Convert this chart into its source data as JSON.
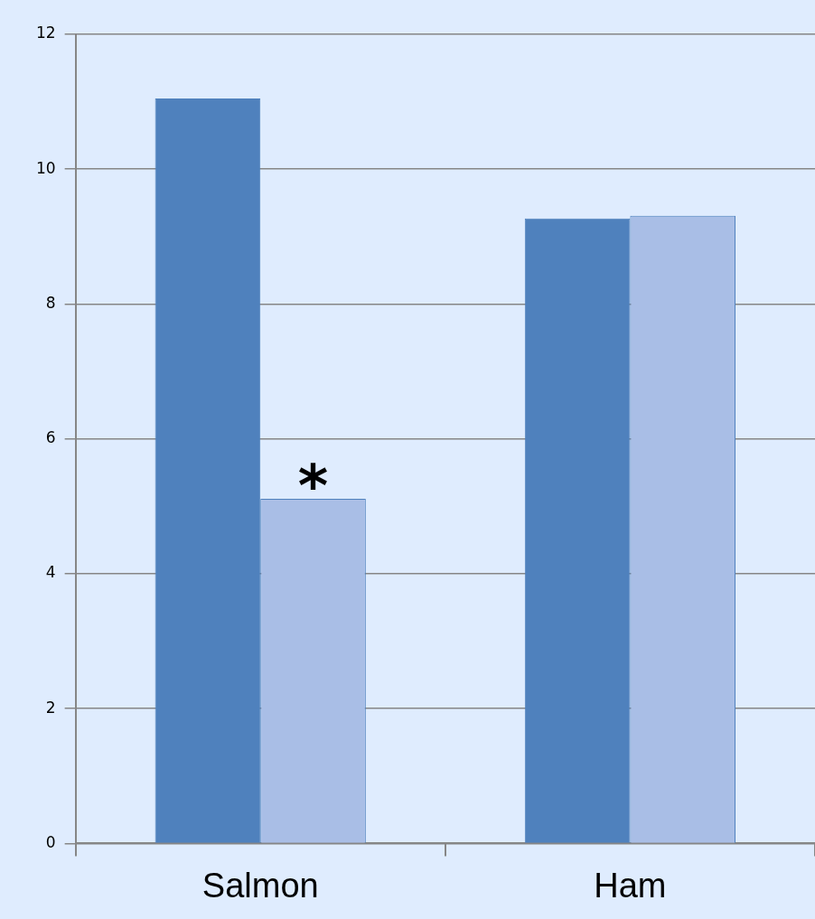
{
  "chart_data": {
    "type": "bar",
    "categories": [
      "Salmon",
      "Ham"
    ],
    "series": [
      {
        "color": "#4f81bd",
        "values": [
          11.05,
          9.27
        ]
      },
      {
        "color": "#a9bee6",
        "values": [
          5.11,
          9.31
        ]
      }
    ],
    "ylim": [
      0,
      12
    ],
    "yticks": [
      0,
      2,
      4,
      6,
      8,
      10,
      12
    ],
    "grid": "y",
    "legend": false,
    "annotations": [
      {
        "text": "*",
        "x": "Salmon",
        "y": 5.11
      }
    ]
  }
}
